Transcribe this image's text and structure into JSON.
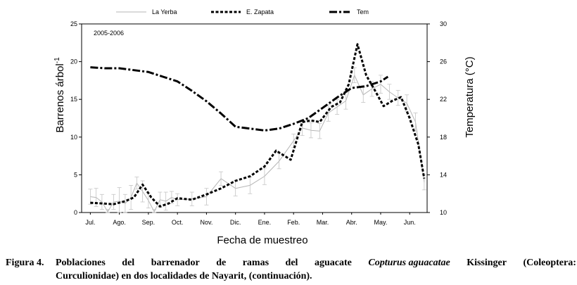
{
  "chart_data": {
    "type": "line",
    "title": "",
    "annotation": "2005-2006",
    "xlabel": "Fecha de muestreo",
    "ylabel": "Barrenos árbol",
    "ylabel_superscript": "-1",
    "y2label": "Temperatura (°C)",
    "ylim": [
      0,
      25
    ],
    "y2lim": [
      10,
      30
    ],
    "yticks": [
      0,
      5,
      10,
      15,
      20,
      25
    ],
    "y2ticks": [
      10,
      14,
      18,
      22,
      26,
      30
    ],
    "x_ticks": [
      "Jul.",
      "Ago.",
      "Sep.",
      "Oct.",
      "Nov.",
      "Dic.",
      "Ene.",
      "Feb.",
      "Mar.",
      "Abr.",
      "May.",
      "Jun."
    ],
    "xlim": [
      -0.3,
      11.6
    ],
    "legend_position": "top",
    "grid": false,
    "series": [
      {
        "name": "La Yerba",
        "axis": "left",
        "style": "solid-thin",
        "color": "#b5b5b5",
        "x": [
          0,
          0.2,
          0.4,
          0.6,
          0.8,
          1.0,
          1.2,
          1.4,
          1.6,
          1.8,
          2.0,
          2.2,
          2.4,
          2.6,
          2.8,
          3.0,
          3.5,
          4.0,
          4.5,
          5.0,
          5.5,
          6.0,
          6.5,
          7.0,
          7.3,
          7.6,
          7.9,
          8.2,
          8.5,
          8.8,
          9.1,
          9.4,
          9.7,
          10.0,
          10.3,
          10.6,
          10.9,
          11.2,
          11.5
        ],
        "y": [
          2.1,
          2.0,
          1.4,
          0.1,
          1.4,
          1.5,
          1.2,
          2.0,
          3.9,
          2.8,
          1.6,
          0.1,
          1.7,
          1.5,
          2.0,
          1.7,
          1.8,
          2.1,
          4.5,
          3.2,
          3.6,
          4.8,
          6.8,
          9.5,
          11.2,
          10.9,
          10.8,
          13.2,
          14.0,
          14.8,
          18.2,
          15.6,
          16.4,
          17.0,
          16.0,
          15.2,
          14.5,
          12.0,
          4.0
        ],
        "err": [
          1.0,
          1.2,
          1.0,
          0.3,
          1.0,
          1.8,
          1.2,
          1.6,
          0.8,
          1.4,
          1.0,
          0.3,
          1.0,
          1.2,
          0.8,
          0.8,
          0.9,
          1.1,
          0.9,
          1.0,
          1.1,
          1.1,
          1.0,
          0.9,
          1.0,
          1.0,
          1.0,
          1.1,
          1.0,
          1.1,
          1.0,
          1.0,
          1.0,
          1.2,
          1.0,
          1.0,
          1.1,
          1.2,
          1.0
        ]
      },
      {
        "name": "E. Zapata",
        "axis": "left",
        "style": "dotted-thick",
        "color": "#000000",
        "x": [
          0,
          0.4,
          0.8,
          1.2,
          1.5,
          1.8,
          2.1,
          2.4,
          2.7,
          3.0,
          3.5,
          4.0,
          4.5,
          5.0,
          5.5,
          6.0,
          6.4,
          6.9,
          7.3,
          7.6,
          7.9,
          8.3,
          8.6,
          8.9,
          9.2,
          9.5,
          9.8,
          10.1,
          10.4,
          10.7,
          11.0,
          11.3,
          11.5
        ],
        "y": [
          1.3,
          1.2,
          1.1,
          1.5,
          2.0,
          3.7,
          2.0,
          0.8,
          1.2,
          1.9,
          1.7,
          2.4,
          3.2,
          4.2,
          4.8,
          6.1,
          8.2,
          7.0,
          12.0,
          12.2,
          12.0,
          14.0,
          14.6,
          17.0,
          22.3,
          18.2,
          16.2,
          14.1,
          14.8,
          15.3,
          12.5,
          9.0,
          4.5
        ]
      },
      {
        "name": "Tem",
        "axis": "right",
        "style": "dash-dot-thick",
        "color": "#000000",
        "x": [
          0,
          0.5,
          1.0,
          1.5,
          2.0,
          2.5,
          3.0,
          3.5,
          4.0,
          4.5,
          5.0,
          5.5,
          6.0,
          6.5,
          7.0,
          7.5,
          8.0,
          8.5,
          9.0,
          9.5,
          10.0,
          10.25
        ],
        "y": [
          25.4,
          25.3,
          25.3,
          25.1,
          24.9,
          24.4,
          23.9,
          22.9,
          21.8,
          20.5,
          19.1,
          18.9,
          18.7,
          18.9,
          19.4,
          20.0,
          21.1,
          22.2,
          23.2,
          23.4,
          23.9,
          24.4
        ]
      }
    ]
  },
  "caption": {
    "label": "Figura 4.",
    "line1_words": [
      "Poblaciones",
      "del",
      "barrenador",
      "de",
      "ramas",
      "del",
      "aguacate"
    ],
    "species": "Copturus aguacatae",
    "line1_tail_words": [
      "Kissinger",
      "(Coleoptera:"
    ],
    "line2": "Curculionidae) en dos localidades de Nayarit, (continuación)."
  }
}
